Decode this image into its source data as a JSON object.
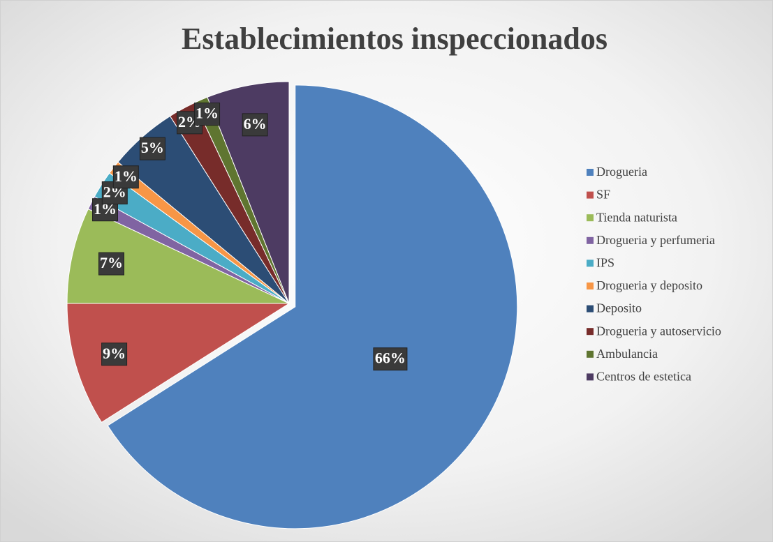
{
  "chart_data": {
    "type": "pie",
    "title": "Establecimientos inspeccionados",
    "categories": [
      "Drogueria",
      "SF",
      "Tienda naturista",
      "Drogueria y perfumeria",
      "IPS",
      "Drogueria y deposito",
      "Deposito",
      "Drogueria y autoservicio",
      "Ambulancia",
      "Centros de estetica"
    ],
    "values": [
      66,
      9,
      7,
      1,
      2,
      1,
      5,
      2,
      1,
      6
    ],
    "value_labels": [
      "66%",
      "9%",
      "7%",
      "1%",
      "2%",
      "1%",
      "5%",
      "2%",
      "1%",
      "6%"
    ],
    "colors": [
      "#4f81bd",
      "#c0504d",
      "#9bbb59",
      "#8064a2",
      "#4bacc6",
      "#f79646",
      "#2c4d75",
      "#772c2a",
      "#5f7530",
      "#4d3b62"
    ],
    "legend": "right"
  }
}
